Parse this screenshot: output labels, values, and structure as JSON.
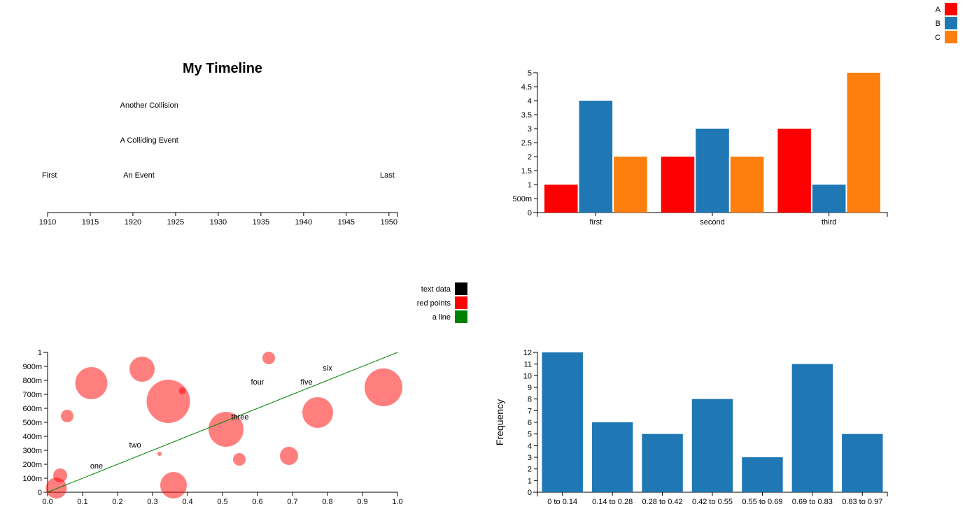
{
  "colors": {
    "red": "#ff0000",
    "blue": "#1f77b4",
    "orange": "#ff7f0e",
    "black": "#000000",
    "green": "#008000",
    "bubble": "#ff7f7f"
  },
  "chart_data": [
    {
      "type": "timeline",
      "title": "My Timeline",
      "xlim": [
        1910,
        1951
      ],
      "ticks": [
        "1910",
        "1915",
        "1920",
        "1925",
        "1930",
        "1935",
        "1940",
        "1945",
        "1950"
      ],
      "events": [
        {
          "label": "First",
          "year": 1910,
          "row": 0
        },
        {
          "label": "An Event",
          "year": 1920.7,
          "row": 0
        },
        {
          "label": "Last",
          "year": 1950,
          "row": 0
        },
        {
          "label": "A Colliding Event",
          "year": 1918.5,
          "row": 1
        },
        {
          "label": "Another Collision",
          "year": 1918.5,
          "row": 2
        }
      ]
    },
    {
      "type": "bar",
      "categories": [
        "first",
        "second",
        "third"
      ],
      "series": [
        {
          "name": "A",
          "values": [
            1,
            2,
            3
          ]
        },
        {
          "name": "B",
          "values": [
            4,
            3,
            1
          ]
        },
        {
          "name": "C",
          "values": [
            2,
            2,
            5
          ]
        }
      ],
      "ylim": [
        0,
        5
      ],
      "yticks": [
        "0",
        "500m",
        "1",
        "1.5",
        "2",
        "2.5",
        "3",
        "3.5",
        "4",
        "4.5",
        "5"
      ],
      "legend": "top-right"
    },
    {
      "type": "scatter",
      "xlim": [
        0,
        1
      ],
      "ylim": [
        0,
        1
      ],
      "xticks": [
        "0.0",
        "0.1",
        "0.2",
        "0.3",
        "0.4",
        "0.5",
        "0.6",
        "0.7",
        "0.8",
        "0.9",
        "1.0"
      ],
      "yticks": [
        "0",
        "100m",
        "200m",
        "300m",
        "400m",
        "500m",
        "600m",
        "700m",
        "800m",
        "900m",
        "1"
      ],
      "legend": [
        "text data",
        "red points",
        "a line"
      ],
      "line": {
        "name": "a line",
        "x": [
          0,
          1
        ],
        "y": [
          0,
          1
        ]
      },
      "points": [
        {
          "x": 0.025,
          "y": 0.03,
          "size": 15
        },
        {
          "x": 0.036,
          "y": 0.12,
          "size": 10
        },
        {
          "x": 0.056,
          "y": 0.545,
          "size": 9
        },
        {
          "x": 0.125,
          "y": 0.78,
          "size": 23
        },
        {
          "x": 0.27,
          "y": 0.88,
          "size": 18
        },
        {
          "x": 0.32,
          "y": 0.275,
          "size": 3
        },
        {
          "x": 0.345,
          "y": 0.65,
          "size": 31
        },
        {
          "x": 0.36,
          "y": 0.05,
          "size": 19
        },
        {
          "x": 0.385,
          "y": 0.725,
          "size": 5
        },
        {
          "x": 0.51,
          "y": 0.45,
          "size": 25
        },
        {
          "x": 0.548,
          "y": 0.235,
          "size": 9
        },
        {
          "x": 0.632,
          "y": 0.96,
          "size": 9
        },
        {
          "x": 0.69,
          "y": 0.26,
          "size": 13
        },
        {
          "x": 0.772,
          "y": 0.57,
          "size": 22
        },
        {
          "x": 0.96,
          "y": 0.75,
          "size": 27
        }
      ],
      "texts": [
        {
          "label": "one",
          "x": 0.14,
          "y": 0.17
        },
        {
          "label": "two",
          "x": 0.25,
          "y": 0.32
        },
        {
          "label": "three",
          "x": 0.55,
          "y": 0.52
        },
        {
          "label": "four",
          "x": 0.6,
          "y": 0.77
        },
        {
          "label": "five",
          "x": 0.74,
          "y": 0.77
        },
        {
          "label": "six",
          "x": 0.8,
          "y": 0.87
        }
      ]
    },
    {
      "type": "bar",
      "categories": [
        "0 to 0.14",
        "0.14 to 0.28",
        "0.28 to 0.42",
        "0.42 to 0.55",
        "0.55 to 0.69",
        "0.69 to 0.83",
        "0.83 to 0.97"
      ],
      "values": [
        12,
        6,
        5,
        8,
        3,
        11,
        5
      ],
      "ylim": [
        0,
        12
      ],
      "yticks": [
        "0",
        "1",
        "2",
        "3",
        "4",
        "5",
        "6",
        "7",
        "8",
        "9",
        "10",
        "11",
        "12"
      ],
      "ylabel": "Frequency",
      "xlabel": ""
    }
  ]
}
